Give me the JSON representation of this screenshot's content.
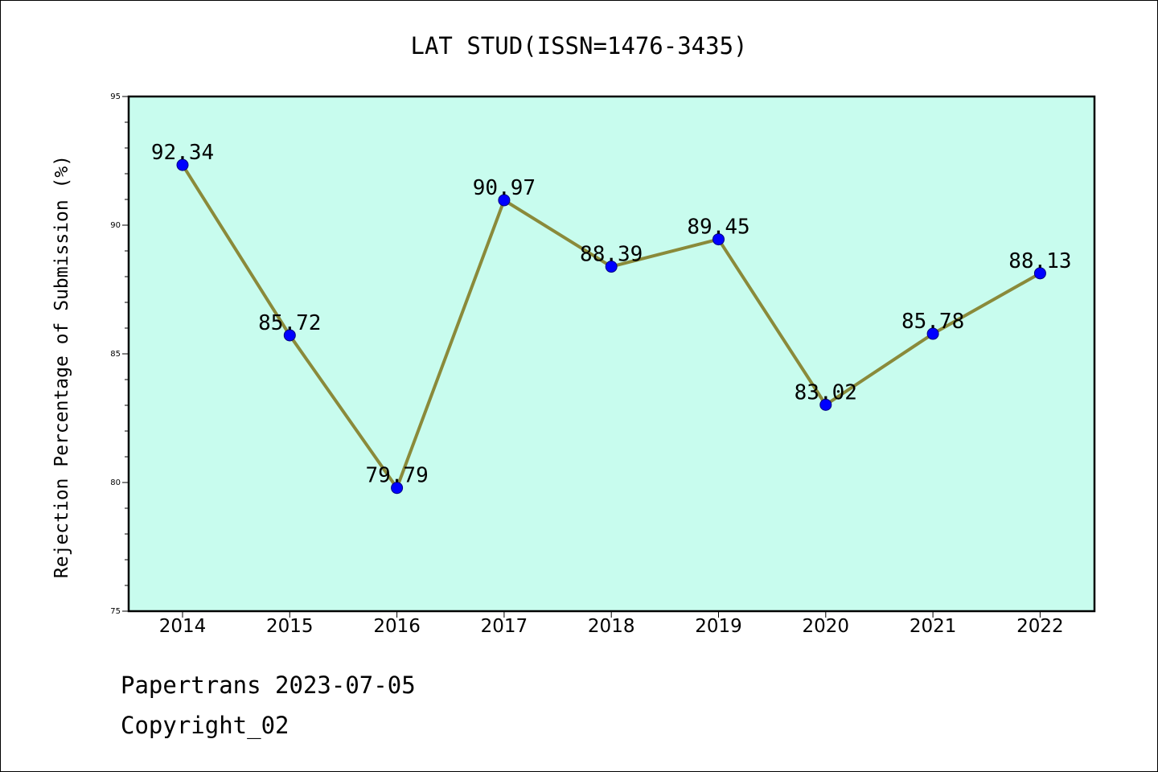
{
  "chart_data": {
    "type": "line",
    "title": "LAT STUD(ISSN=1476-3435)",
    "xlabel": "",
    "ylabel": "Rejection Percentage of Submission (%)",
    "categories": [
      "2014",
      "2015",
      "2016",
      "2017",
      "2018",
      "2019",
      "2020",
      "2021",
      "2022"
    ],
    "values": [
      92.34,
      85.72,
      79.79,
      90.97,
      88.39,
      89.45,
      83.02,
      85.78,
      88.13
    ],
    "data_labels": [
      "92.34",
      "85.72",
      "79.79",
      "90.97",
      "88.39",
      "89.45",
      "83.02",
      "85.78",
      "88.13"
    ],
    "ylim": [
      75,
      95
    ],
    "yticks": [
      "75",
      "80",
      "85",
      "90",
      "95"
    ],
    "grid": false,
    "colors": {
      "plot_background": "#c8fcee",
      "line": "#8a8a3a",
      "marker": "#0000ff",
      "marker_edge": "#000080"
    }
  },
  "footer": {
    "line1": "Papertrans 2023-07-05",
    "line2": "Copyright_02"
  }
}
